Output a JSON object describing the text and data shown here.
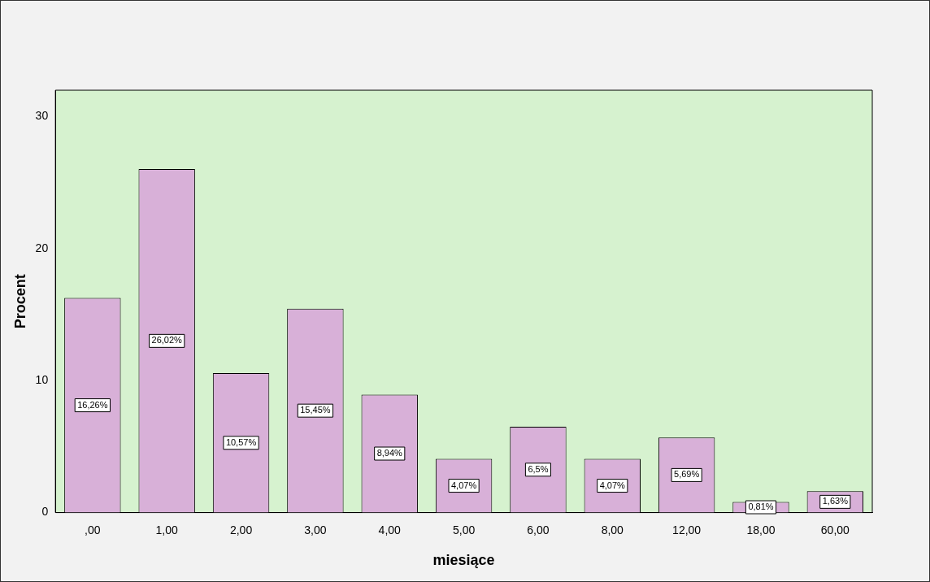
{
  "chart_data": {
    "type": "bar",
    "xlabel": "miesiące",
    "ylabel": "Procent",
    "categories": [
      ",00",
      "1,00",
      "2,00",
      "3,00",
      "4,00",
      "5,00",
      "6,00",
      "8,00",
      "12,00",
      "18,00",
      "60,00"
    ],
    "values": [
      16.26,
      26.02,
      10.57,
      15.45,
      8.94,
      4.07,
      6.5,
      4.07,
      5.69,
      0.81,
      1.63
    ],
    "value_labels": [
      "16,26%",
      "26,02%",
      "10,57%",
      "15,45%",
      "8,94%",
      "4,07%",
      "6,5%",
      "4,07%",
      "5,69%",
      "0,81%",
      "1,63%"
    ],
    "color": "#d8b0d8",
    "ylim": [
      0,
      32
    ],
    "yticks": [
      0,
      10,
      20,
      30
    ],
    "grid": false,
    "legend": false
  }
}
